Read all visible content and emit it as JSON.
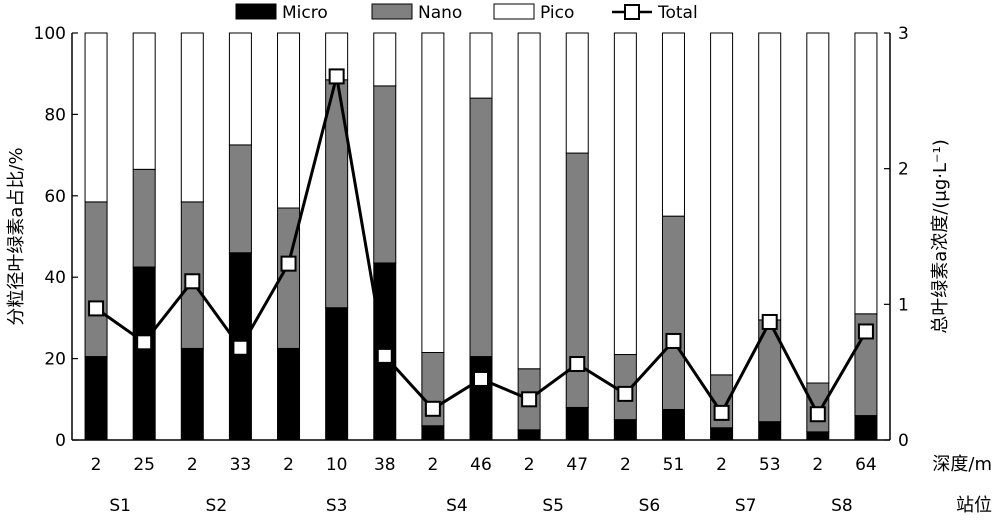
{
  "chart_data": {
    "type": "bar",
    "stacked": true,
    "categories": [
      "2",
      "25",
      "2",
      "33",
      "2",
      "10",
      "38",
      "2",
      "46",
      "2",
      "47",
      "2",
      "51",
      "2",
      "53",
      "2",
      "64"
    ],
    "groups": [
      {
        "label": "S1",
        "span": [
          0,
          1
        ]
      },
      {
        "label": "S2",
        "span": [
          2,
          3
        ]
      },
      {
        "label": "S3",
        "span": [
          4,
          6
        ]
      },
      {
        "label": "S4",
        "span": [
          7,
          8
        ]
      },
      {
        "label": "S5",
        "span": [
          9,
          10
        ]
      },
      {
        "label": "S6",
        "span": [
          11,
          12
        ]
      },
      {
        "label": "S7",
        "span": [
          13,
          14
        ]
      },
      {
        "label": "S8",
        "span": [
          15,
          16
        ]
      }
    ],
    "series": [
      {
        "name": "Micro",
        "color": "#000000",
        "values": [
          20.5,
          42.5,
          22.5,
          46,
          22.5,
          32.5,
          43.5,
          3.5,
          20.5,
          2.5,
          8,
          5,
          7.5,
          3,
          4.5,
          2,
          6
        ]
      },
      {
        "name": "Nano",
        "color": "#808080",
        "values": [
          38,
          24,
          36,
          26.5,
          34.5,
          56,
          43.5,
          18,
          63.5,
          15,
          62.5,
          16,
          47.5,
          13,
          25,
          12,
          25
        ]
      },
      {
        "name": "Pico",
        "color": "#ffffff",
        "values": [
          41.5,
          33.5,
          41.5,
          27.5,
          43,
          11.5,
          13,
          78.5,
          16,
          82.5,
          29.5,
          79,
          45,
          84,
          70.5,
          86,
          69
        ]
      }
    ],
    "line_series": {
      "name": "Total",
      "axis": "right",
      "values": [
        0.97,
        0.72,
        1.17,
        0.68,
        1.3,
        2.68,
        0.62,
        0.23,
        0.45,
        0.3,
        0.56,
        0.34,
        0.73,
        0.2,
        0.87,
        0.19,
        0.8
      ]
    },
    "y_left": {
      "label": "分粒径叶绿素a占比/%",
      "lim": [
        0,
        100
      ],
      "ticks": [
        "0",
        "20",
        "40",
        "60",
        "80",
        "100"
      ]
    },
    "y_right": {
      "label": "总叶绿素a浓度/(μg·L⁻¹)",
      "lim": [
        0,
        3
      ],
      "ticks": [
        "0",
        "1",
        "2",
        "3"
      ]
    },
    "x_label": "深度/m",
    "group_axis_label": "站位",
    "legend": {
      "placement": "top",
      "entries": [
        "Micro",
        "Nano",
        "Pico",
        "Total"
      ]
    }
  }
}
